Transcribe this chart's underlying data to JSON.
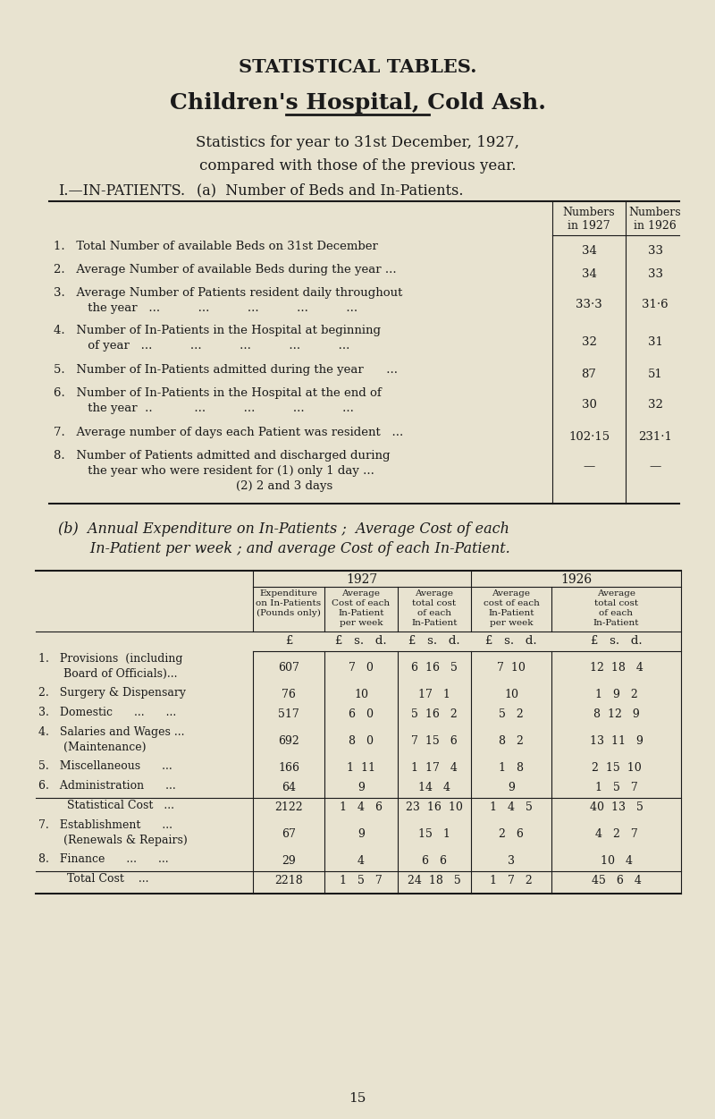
{
  "bg_color": "#e8e3d0",
  "text_color": "#1a1a1a",
  "title1": "STATISTICAL TABLES.",
  "title2": "Children's Hospital, Cold Ash.",
  "subtitle1": "Statistics for year to 31st December, 1927,",
  "subtitle2": "compared with those of the previous year.",
  "section1_header": "I.—IN-PATIENTS.",
  "section1_sub": "(a)  Number of Beds and In-Patients.",
  "table1_rows": [
    [
      "1.   Total Number of available Beds on 31st December",
      "34",
      "33"
    ],
    [
      "2.   Average Number of available Beds during the year ...",
      "34",
      "33"
    ],
    [
      "3.   Average Number of Patients resident daily throughout\n         the year   ...          ...          ...          ...          ...",
      "33·3",
      "31·6"
    ],
    [
      "4.   Number of In-Patients in the Hospital at beginning\n         of year   ...          ...          ...          ...          ...",
      "32",
      "31"
    ],
    [
      "5.   Number of In-Patients admitted during the year      ...",
      "87",
      "51"
    ],
    [
      "6.   Number of In-Patients in the Hospital at the end of\n         the year  ..           ...          ...          ...          ...",
      "30",
      "32"
    ],
    [
      "7.   Average number of days each Patient was resident   ...",
      "102·15",
      "231·1"
    ],
    [
      "8.   Number of Patients admitted and discharged during\n         the year who were resident for (1) only 1 day ...\n                                                (2) 2 and 3 days",
      "—",
      "—"
    ]
  ],
  "section2_header1": "(b)  Annual Expenditure on In-Patients ;  Average Cost of each",
  "section2_header2": "       In-Patient per week ; and average Cost of each In-Patient.",
  "table2_col_headers": [
    "Expenditure\non In-Patients\n(Pounds only)",
    "Average\nCost of each\nIn-Patient\nper week",
    "Average\ntotal cost\nof each\nIn-Patient",
    "Average\ncost of each\nIn-Patient\nper week",
    "Average\ntotal cost\nof each\nIn-Patient"
  ],
  "table2_rows": [
    [
      "1.   Provisions  (including\n       Board of Officials)...",
      "607",
      "7   0",
      "6  16   5",
      "7  10",
      "12  18   4"
    ],
    [
      "2.   Surgery & Dispensary",
      "76",
      "10",
      "17   1",
      "10",
      "1   9   2"
    ],
    [
      "3.   Domestic      ...      ...",
      "517",
      "6   0",
      "5  16   2",
      "5   2",
      "8  12   9"
    ],
    [
      "4.   Salaries and Wages ...\n       (Maintenance)",
      "692",
      "8   0",
      "7  15   6",
      "8   2",
      "13  11   9"
    ],
    [
      "5.   Miscellaneous      ...",
      "166",
      "1  11",
      "1  17   4",
      "1   8",
      "2  15  10"
    ],
    [
      "6.   Administration      ...",
      "64",
      "9",
      "14   4",
      "9",
      "1   5   7"
    ],
    [
      "        Statistical Cost   ...",
      "2122",
      "1   4   6",
      "23  16  10",
      "1   4   5",
      "40  13   5"
    ],
    [
      "7.   Establishment      ...\n       (Renewals & Repairs)",
      "67",
      "9",
      "15   1",
      "2   6",
      "4   2   7"
    ],
    [
      "8.   Finance      ...      ...",
      "29",
      "4",
      "6   6",
      "3",
      "10   4"
    ],
    [
      "        Total Cost    ...",
      "2218",
      "1   5   7",
      "24  18   5",
      "1   7   2",
      "45   6   4"
    ]
  ],
  "footer": "15"
}
